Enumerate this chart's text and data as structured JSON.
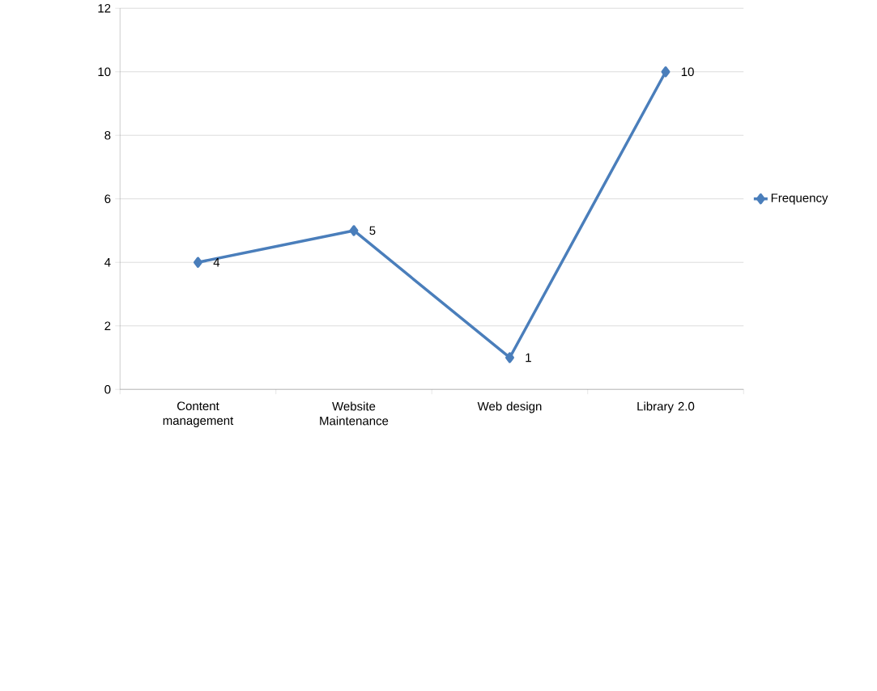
{
  "chart_data": {
    "type": "line",
    "categories": [
      "Content management",
      "Website Maintenance",
      "Web design",
      "Library 2.0"
    ],
    "series": [
      {
        "name": "Frequency",
        "color": "#4a7ebb",
        "values": [
          4,
          5,
          1,
          10
        ]
      }
    ],
    "ylim": [
      0,
      12
    ],
    "yticks": [
      0,
      2,
      4,
      6,
      8,
      10,
      12
    ],
    "grid": "y",
    "legend": "right",
    "marker": "diamond",
    "line_style": "solid",
    "data_labels": true
  }
}
